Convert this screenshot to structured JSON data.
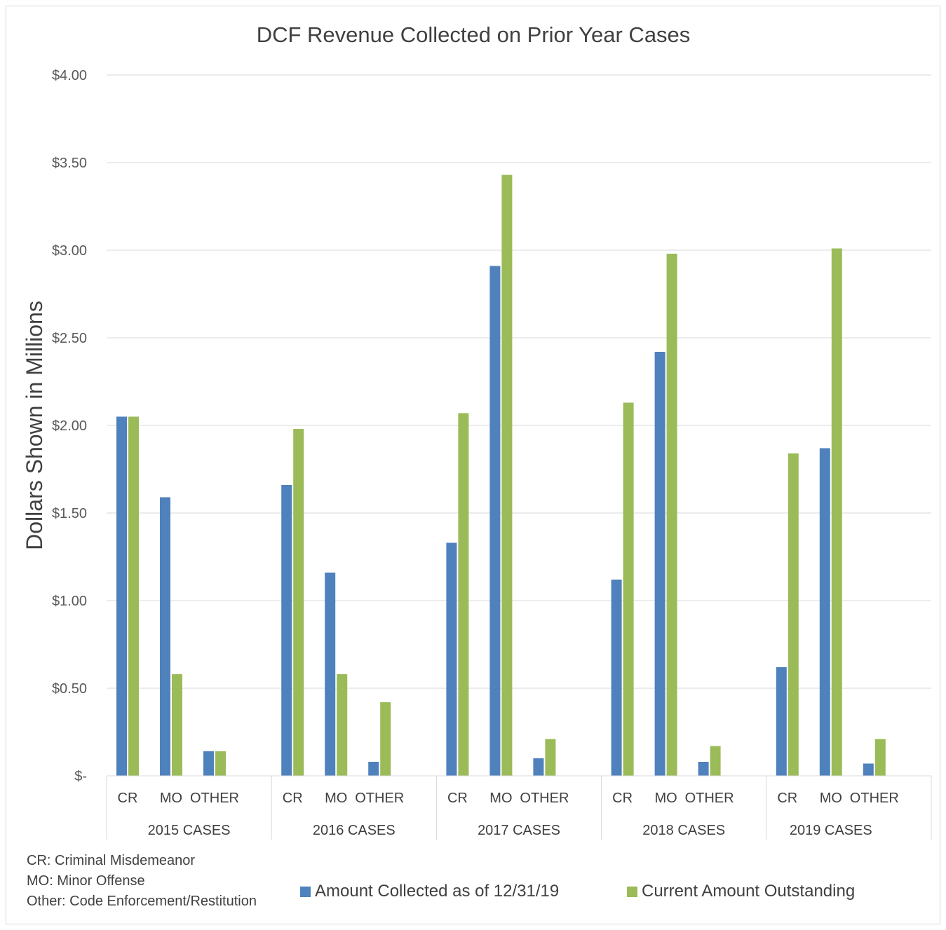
{
  "chart_data": {
    "type": "bar",
    "title": "DCF Revenue Collected on Prior Year Cases",
    "ylabel": "Dollars Shown in Millions",
    "ylim": [
      0,
      4
    ],
    "yticks": [
      {
        "value": 0,
        "label": "$-"
      },
      {
        "value": 0.5,
        "label": "$0.50"
      },
      {
        "value": 1.0,
        "label": "$1.00"
      },
      {
        "value": 1.5,
        "label": "$1.50"
      },
      {
        "value": 2.0,
        "label": "$2.00"
      },
      {
        "value": 2.5,
        "label": "$2.50"
      },
      {
        "value": 3.0,
        "label": "$3.00"
      },
      {
        "value": 3.5,
        "label": "$3.50"
      },
      {
        "value": 4.0,
        "label": "$4.00"
      }
    ],
    "grid": true,
    "legend_position": "bottom",
    "groups": [
      "2015 CASES",
      "2016 CASES",
      "2017 CASES",
      "2018 CASES",
      "2019 CASES"
    ],
    "subcategories": [
      "CR",
      "MO",
      "OTHER"
    ],
    "series": [
      {
        "name": "Amount Collected as of 12/31/19",
        "color": "#4f81bd",
        "values": [
          2.05,
          1.59,
          0.14,
          1.66,
          1.16,
          0.08,
          1.33,
          2.91,
          0.1,
          1.12,
          2.42,
          0.08,
          0.62,
          1.87,
          0.07
        ]
      },
      {
        "name": "Current Amount Outstanding",
        "color": "#9bbb59",
        "values": [
          2.05,
          0.58,
          0.14,
          1.98,
          0.58,
          0.42,
          2.07,
          3.43,
          0.21,
          2.13,
          2.98,
          0.17,
          1.84,
          3.01,
          0.21
        ]
      }
    ]
  },
  "notes": [
    "CR: Criminal Misdemeanor",
    "MO: Minor Offense",
    "Other: Code Enforcement/Restitution"
  ]
}
